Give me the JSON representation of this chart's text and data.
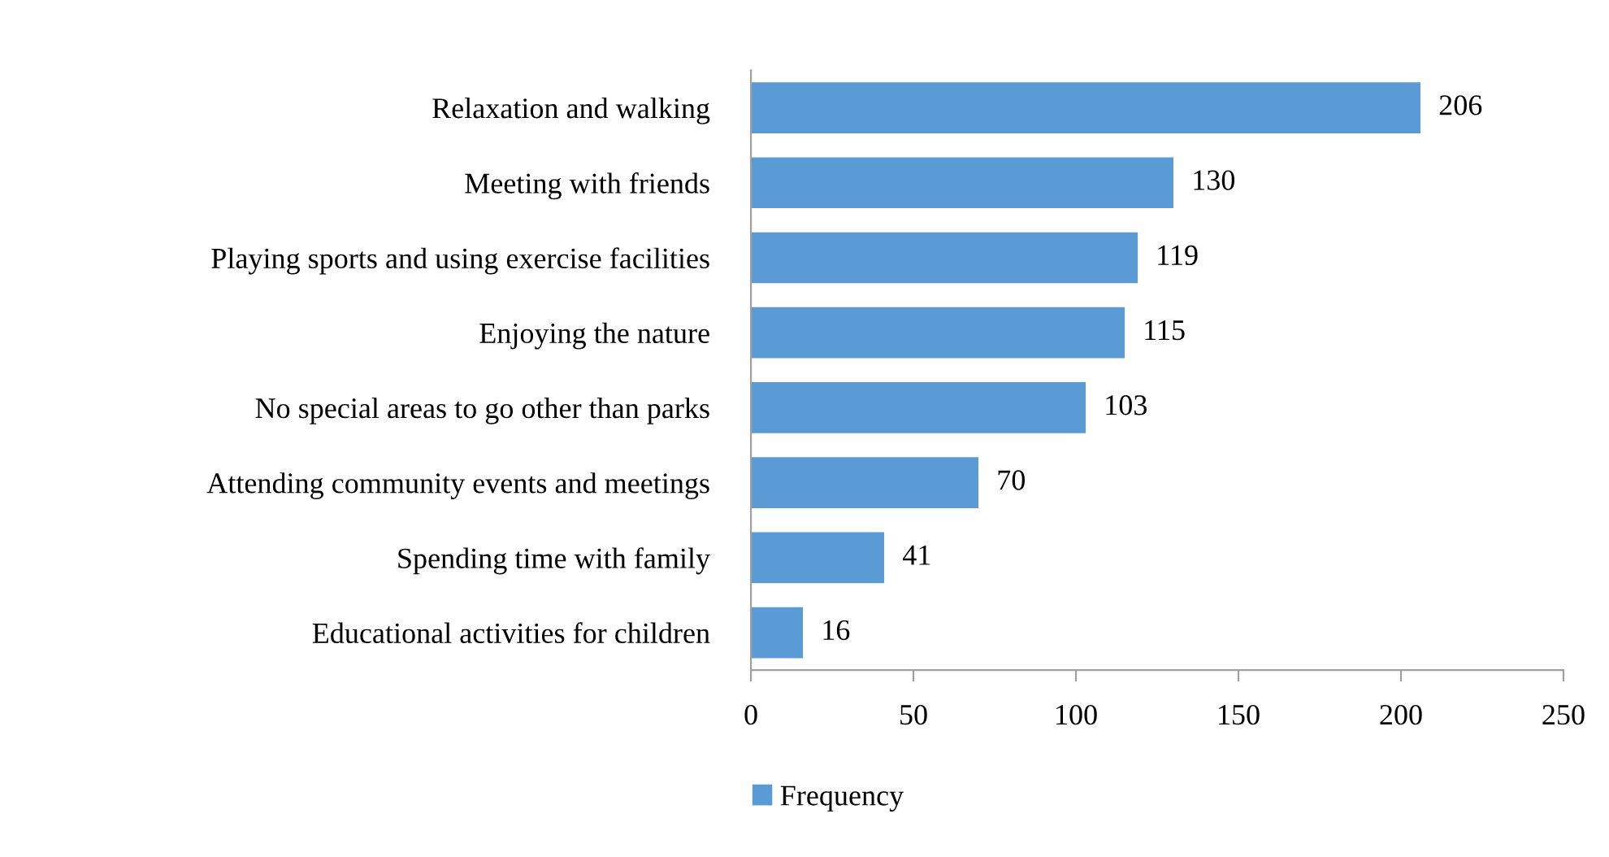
{
  "chart_data": {
    "type": "bar",
    "orientation": "horizontal",
    "categories": [
      "Relaxation and walking",
      "Meeting with friends",
      "Playing sports and using exercise facilities",
      "Enjoying the nature",
      "No special areas to go other than parks",
      "Attending community events and meetings",
      "Spending time with family",
      "Educational activities for children"
    ],
    "series": [
      {
        "name": "Frequency",
        "color": "#5b9bd5",
        "values": [
          206,
          130,
          119,
          115,
          103,
          70,
          41,
          16
        ]
      }
    ],
    "xlim": [
      0,
      250
    ],
    "xticks": [
      0,
      50,
      100,
      150,
      200,
      250
    ],
    "data_labels": true,
    "grid": false,
    "legend": "bottom"
  }
}
